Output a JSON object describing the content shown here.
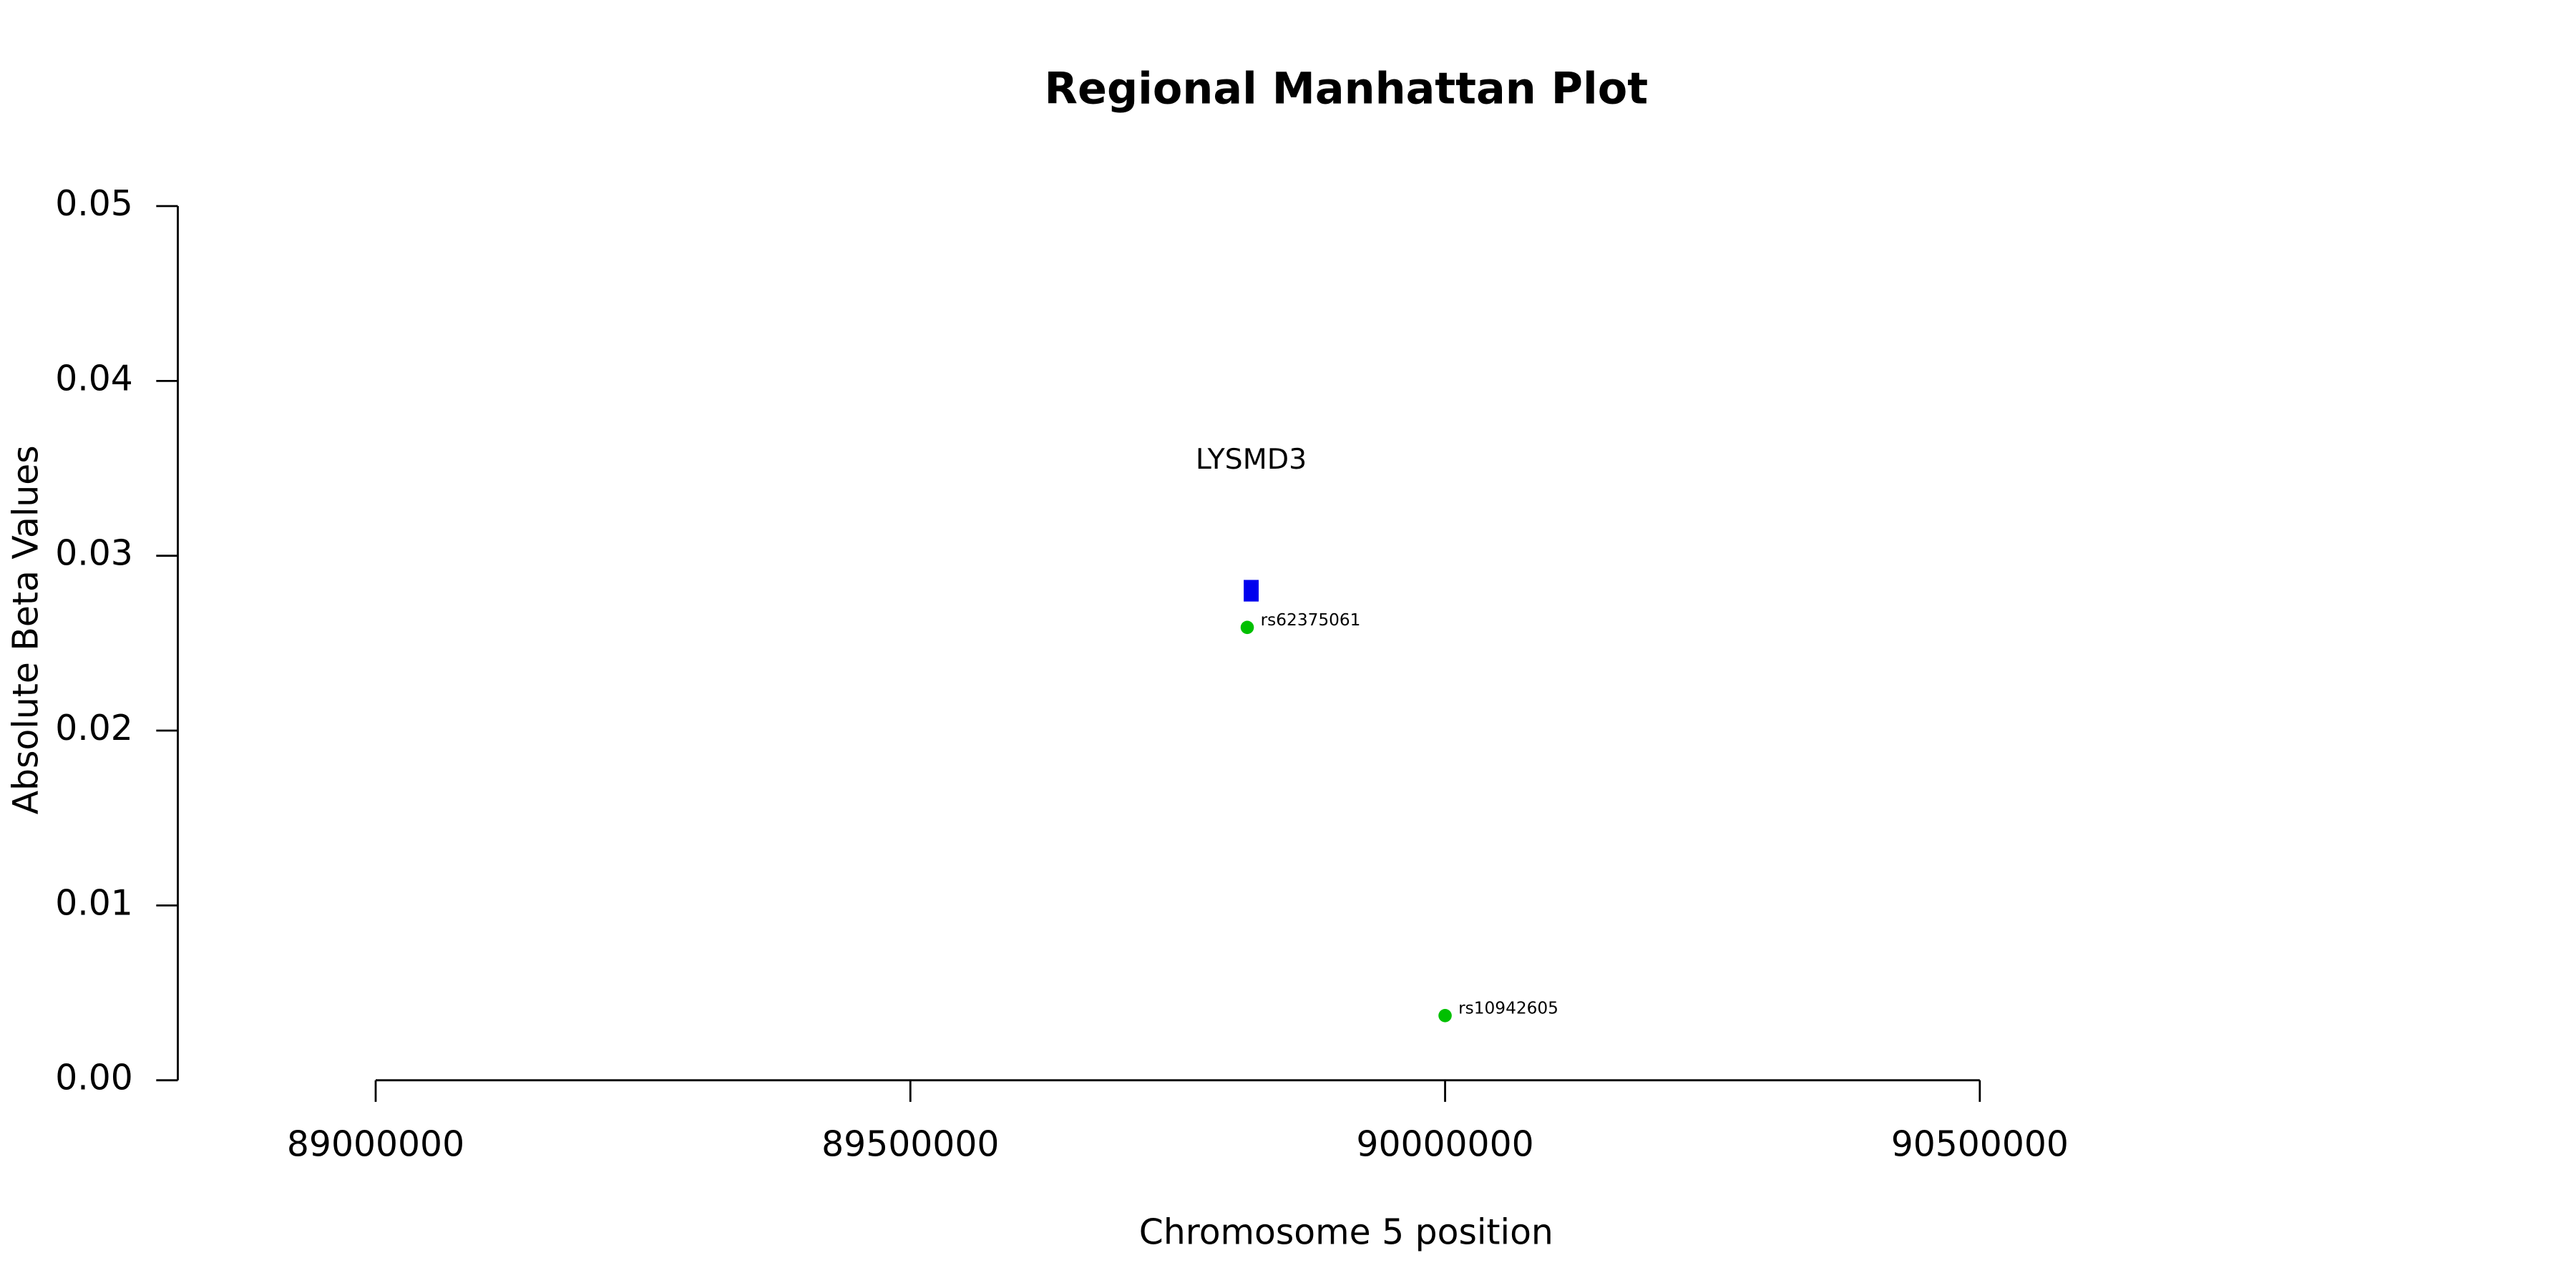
{
  "chart_data": {
    "type": "scatter",
    "title": "Regional Manhattan Plot",
    "x_label": "Chromosome 5 position",
    "y_label": "Absolute Beta Values",
    "x": [
      89815000,
      90000000
    ],
    "values": [
      0.0259,
      0.0037
    ],
    "point_labels": [
      "rs62375061",
      "rs10942605"
    ],
    "color": "#00c000",
    "genes": [
      {
        "name": "LYSMD3",
        "start": 89811700,
        "end": 89825700,
        "y": 0.028,
        "color": "#0000ee"
      }
    ],
    "xlim": [
      88815000,
      91000000
    ],
    "ylim": [
      0,
      0.05
    ],
    "xticks": [
      89000000,
      89500000,
      90000000,
      90500000
    ],
    "yticks": [
      {
        "value": 0,
        "label": "0.00"
      },
      0.01,
      0.02,
      0.03,
      0.04,
      0.05
    ]
  }
}
